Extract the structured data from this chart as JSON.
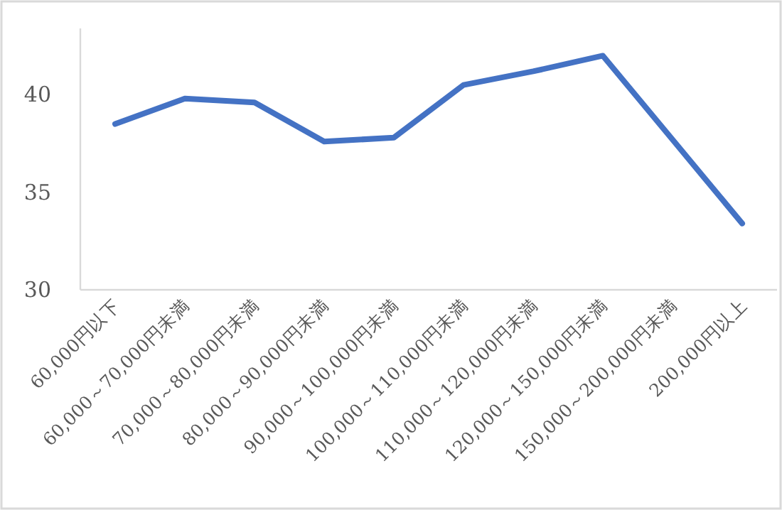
{
  "chart_data": {
    "type": "line",
    "categories": [
      "60,000円以下",
      "60,000～70,000円未満",
      "70,000～80,000円未満",
      "80,000～90,000円未満",
      "90,000～100,000円未満",
      "100,000～110,000円未満",
      "110,000～120,000円未満",
      "120,000～150,000円未満",
      "150,000～200,000円未満",
      "200,000円以上"
    ],
    "series": [
      {
        "color": "#4472c4",
        "values": [
          38.5,
          39.8,
          39.6,
          37.6,
          37.8,
          40.5,
          41.2,
          42.0,
          37.7,
          33.4
        ]
      }
    ],
    "ylim": [
      30,
      43.4
    ],
    "yticks": [
      30,
      35,
      40
    ],
    "grid": false,
    "marker": "none",
    "line_style": "solid"
  }
}
